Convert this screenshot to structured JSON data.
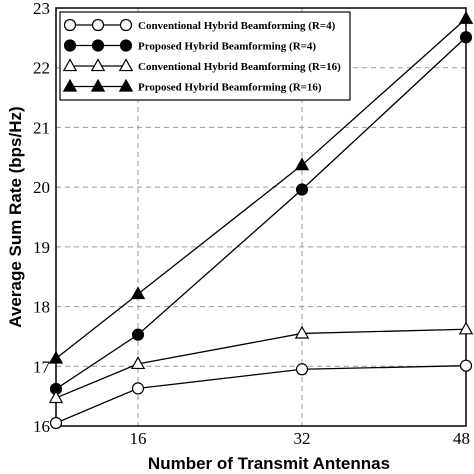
{
  "chart_data": {
    "type": "line",
    "x": [
      8,
      16,
      32,
      48
    ],
    "xticks": [
      "16",
      "32",
      "48"
    ],
    "yticks": [
      "16",
      "17",
      "18",
      "19",
      "20",
      "21",
      "22",
      "23"
    ],
    "xlim": [
      8,
      48
    ],
    "ylim": [
      16,
      23
    ],
    "xlabel": "Number of Transmit Antennas",
    "ylabel": "Average Sum Rate (bps/Hz)",
    "grid": true,
    "legend_position": "top-left",
    "series": [
      {
        "name": "Conventional Hybrid Beamforming (R=4)",
        "marker": "circle-open",
        "values": [
          16.05,
          16.63,
          16.95,
          17.01
        ]
      },
      {
        "name": "Proposed Hybrid Beamforming (R=4)",
        "marker": "circle-filled",
        "values": [
          16.62,
          17.53,
          19.96,
          22.51
        ]
      },
      {
        "name": "Conventional Hybrid Beamforming (R=16)",
        "marker": "triangle-open",
        "values": [
          16.47,
          17.04,
          17.55,
          17.62
        ]
      },
      {
        "name": "Proposed Hybrid Beamforming (R=16)",
        "marker": "triangle-filled",
        "values": [
          17.13,
          18.21,
          20.37,
          22.82
        ]
      }
    ]
  }
}
